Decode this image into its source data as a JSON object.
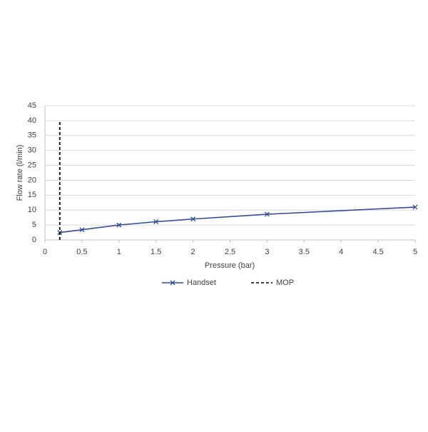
{
  "chart_data": {
    "type": "line",
    "x_label": "Pressure (bar)",
    "y_label": "Flow rate (l/min)",
    "xlim": [
      0,
      5
    ],
    "xticks": [
      0,
      0.5,
      1,
      1.5,
      2,
      2.5,
      3,
      3.5,
      4,
      4.5,
      5
    ],
    "ylim": [
      0,
      45
    ],
    "yticks": [
      0,
      5,
      10,
      15,
      20,
      25,
      30,
      35,
      40,
      45
    ],
    "grid": true,
    "legend": "bottom",
    "series": [
      {
        "name": "Handset",
        "color": "#2e4a9e",
        "marker": "x",
        "dash": false,
        "x": [
          0.2,
          0.5,
          1,
          1.5,
          2,
          3,
          5
        ],
        "values": [
          2.5,
          3.4,
          5.0,
          6.1,
          7.0,
          8.6,
          11.0
        ]
      },
      {
        "name": "MOP",
        "color": "#000000",
        "marker": "none",
        "dash": true,
        "x": [
          0.2,
          0.2
        ],
        "values": [
          0,
          40
        ]
      }
    ]
  }
}
